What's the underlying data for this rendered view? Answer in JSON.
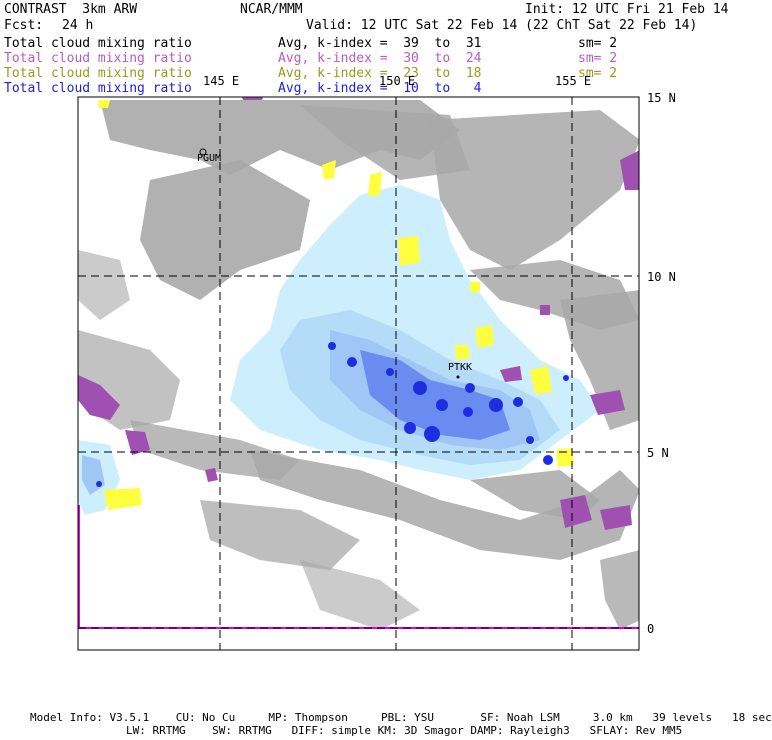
{
  "header": {
    "model": "CONTRAST  3km ARW",
    "org": "NCAR/MMM",
    "init": "Init: 12 UTC Fri 21 Feb 14",
    "fcst_label": "Fcst:",
    "fcst_value": "24 h",
    "valid": "Valid: 12 UTC Sat 22 Feb 14 (22 ChT Sat 22 Feb 14)"
  },
  "legend_rows": [
    {
      "field": "Total cloud mixing ratio",
      "avg": "Avg, k-index =  39  to  31",
      "sm": "sm= 2",
      "color": "#000000"
    },
    {
      "field": "Total cloud mixing ratio",
      "avg": "Avg, k-index =  30  to  24",
      "sm": "sm= 2",
      "color": "#b85cc4"
    },
    {
      "field": "Total cloud mixing ratio",
      "avg": "Avg, k-index =  23  to  18",
      "sm": "sm= 2",
      "color": "#9a9a1e"
    },
    {
      "field": "Total cloud mixing ratio",
      "avg": "Avg, k-index =  10  to   4",
      "sm": "",
      "color": "#2020e0"
    }
  ],
  "map": {
    "lon_labels": [
      "145 E",
      "150 E",
      "155 E"
    ],
    "lat_labels": [
      "15 N",
      "10 N",
      "5 N",
      "0"
    ],
    "stations": [
      "PGUM",
      "PTKK"
    ]
  },
  "footer": {
    "line1": "Model Info: V3.5.1    CU: No Cu     MP: Thompson     PBL: YSU       SF: Noah LSM     3.0 km   39 levels   18 sec",
    "line2": "LW: RRTMG    SW: RRTMG   DIFF: simple KM: 3D Smagor DAMP: Rayleigh3   SFLAY: Rev MM5"
  },
  "colors": {
    "gray_cloud": "#a8a8a8",
    "light_blue": "#cdeefc",
    "mid_blue": "#9fc6f4",
    "blue": "#6a8cf0",
    "dark_blue": "#1c2ee0",
    "purple": "#a050b0",
    "yellow": "#ffff40",
    "magenta_line": "#e000e0"
  }
}
